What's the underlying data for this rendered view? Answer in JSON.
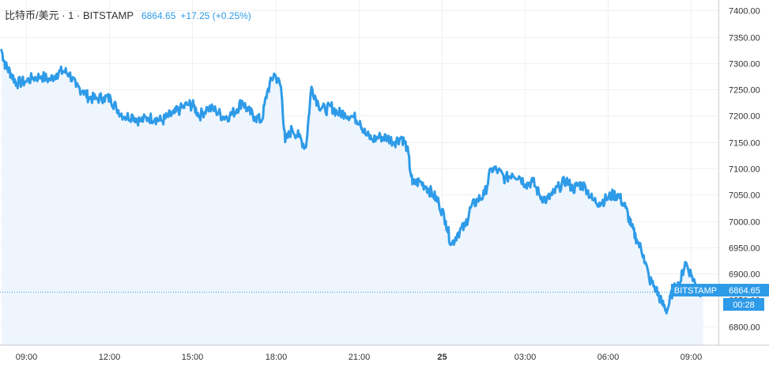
{
  "header": {
    "symbol": "比特币/美元 · 1 · BITSTAMP",
    "last_price": "6864.65",
    "change": "+17.25 (+0.25%)"
  },
  "price_tag": {
    "exchange": "BITSTAMP",
    "price": "6864.65",
    "countdown": "00:28"
  },
  "colors": {
    "line": "#2e9be8",
    "area": "#eef5fd",
    "tag": "#2e9be8",
    "grid": "#eef0f3"
  },
  "chart_data": {
    "type": "area",
    "y_ticks": [
      "7400.00",
      "7350.00",
      "7300.00",
      "7250.00",
      "7200.00",
      "7150.00",
      "7100.00",
      "7050.00",
      "7000.00",
      "6950.00",
      "6900.00",
      "6850.00",
      "6800.00"
    ],
    "x_ticks": [
      {
        "label": "09:00",
        "t": 0.5,
        "bold": false
      },
      {
        "label": "12:00",
        "t": 3.5,
        "bold": false
      },
      {
        "label": "15:00",
        "t": 6.5,
        "bold": false
      },
      {
        "label": "18:00",
        "t": 9.5,
        "bold": false
      },
      {
        "label": "21:00",
        "t": 12.5,
        "bold": false
      },
      {
        "label": "25",
        "t": 15.5,
        "bold": true
      },
      {
        "label": "03:00",
        "t": 18.5,
        "bold": false
      },
      {
        "label": "06:00",
        "t": 21.5,
        "bold": false
      },
      {
        "label": "09:00",
        "t": 24.5,
        "bold": false
      }
    ],
    "ylim": [
      6765,
      7420
    ],
    "xlim": [
      -0.45,
      25.5
    ],
    "last_value": 6864.65,
    "series": [
      {
        "points": [
          [
            -0.4,
            7325
          ],
          [
            -0.25,
            7295
          ],
          [
            -0.05,
            7280
          ],
          [
            0.15,
            7262
          ],
          [
            0.45,
            7265
          ],
          [
            0.75,
            7272
          ],
          [
            1.05,
            7275
          ],
          [
            1.35,
            7268
          ],
          [
            1.6,
            7280
          ],
          [
            1.85,
            7285
          ],
          [
            2.05,
            7280
          ],
          [
            2.3,
            7255
          ],
          [
            2.55,
            7248
          ],
          [
            2.75,
            7235
          ],
          [
            3.0,
            7232
          ],
          [
            3.3,
            7235
          ],
          [
            3.55,
            7232
          ],
          [
            3.75,
            7215
          ],
          [
            4.05,
            7198
          ],
          [
            4.35,
            7200
          ],
          [
            4.6,
            7190
          ],
          [
            4.9,
            7196
          ],
          [
            5.15,
            7195
          ],
          [
            5.4,
            7190
          ],
          [
            5.6,
            7198
          ],
          [
            5.85,
            7205
          ],
          [
            6.05,
            7212
          ],
          [
            6.35,
            7222
          ],
          [
            6.55,
            7218
          ],
          [
            6.75,
            7200
          ],
          [
            7.05,
            7215
          ],
          [
            7.35,
            7210
          ],
          [
            7.6,
            7198
          ],
          [
            7.85,
            7200
          ],
          [
            8.1,
            7212
          ],
          [
            8.3,
            7228
          ],
          [
            8.5,
            7210
          ],
          [
            8.75,
            7198
          ],
          [
            9.0,
            7190
          ],
          [
            9.2,
            7245
          ],
          [
            9.45,
            7280
          ],
          [
            9.7,
            7255
          ],
          [
            9.85,
            7150
          ],
          [
            10.1,
            7175
          ],
          [
            10.35,
            7160
          ],
          [
            10.6,
            7140
          ],
          [
            10.8,
            7255
          ],
          [
            11.05,
            7222
          ],
          [
            11.3,
            7210
          ],
          [
            11.5,
            7218
          ],
          [
            11.75,
            7205
          ],
          [
            12.0,
            7205
          ],
          [
            12.3,
            7198
          ],
          [
            12.55,
            7190
          ],
          [
            12.75,
            7165
          ],
          [
            13.0,
            7155
          ],
          [
            13.3,
            7160
          ],
          [
            13.55,
            7158
          ],
          [
            13.8,
            7150
          ],
          [
            14.05,
            7160
          ],
          [
            14.25,
            7140
          ],
          [
            14.45,
            7070
          ],
          [
            14.7,
            7075
          ],
          [
            14.95,
            7065
          ],
          [
            15.2,
            7050
          ],
          [
            15.4,
            7035
          ],
          [
            15.65,
            7000
          ],
          [
            15.85,
            6955
          ],
          [
            16.1,
            6978
          ],
          [
            16.35,
            6990
          ],
          [
            16.55,
            7025
          ],
          [
            16.8,
            7040
          ],
          [
            17.05,
            7050
          ],
          [
            17.3,
            7100
          ],
          [
            17.55,
            7095
          ],
          [
            17.8,
            7080
          ],
          [
            18.05,
            7090
          ],
          [
            18.3,
            7085
          ],
          [
            18.55,
            7070
          ],
          [
            18.8,
            7075
          ],
          [
            19.05,
            7048
          ],
          [
            19.3,
            7040
          ],
          [
            19.5,
            7050
          ],
          [
            19.75,
            7065
          ],
          [
            20.0,
            7078
          ],
          [
            20.25,
            7060
          ],
          [
            20.45,
            7070
          ],
          [
            20.7,
            7065
          ],
          [
            20.95,
            7040
          ],
          [
            21.2,
            7035
          ],
          [
            21.45,
            7042
          ],
          [
            21.7,
            7050
          ],
          [
            21.9,
            7048
          ],
          [
            22.15,
            7025
          ],
          [
            22.35,
            6990
          ],
          [
            22.55,
            6965
          ],
          [
            22.8,
            6935
          ],
          [
            23.0,
            6890
          ],
          [
            23.25,
            6870
          ],
          [
            23.45,
            6845
          ],
          [
            23.65,
            6830
          ],
          [
            23.85,
            6868
          ],
          [
            24.1,
            6880
          ],
          [
            24.3,
            6922
          ],
          [
            24.55,
            6895
          ],
          [
            24.75,
            6870
          ],
          [
            24.95,
            6864.65
          ]
        ]
      }
    ]
  }
}
